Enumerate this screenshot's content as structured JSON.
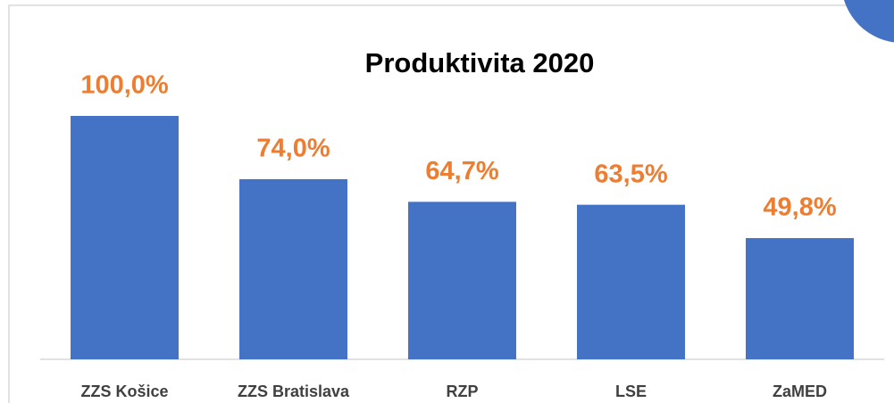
{
  "chart_data": {
    "type": "bar",
    "title": "Produktivita 2020",
    "categories": [
      "ZZS Košice",
      "ZZS Bratislava",
      "RZP",
      "LSE",
      "ZaMED"
    ],
    "values": [
      100,
      74,
      64.7,
      63.5,
      49.8
    ],
    "value_labels": [
      "100,0%",
      "74,0%",
      "64,7%",
      "63,5%",
      "49,8%"
    ],
    "color": "#4472c4",
    "label_color": "#ed7d31",
    "ylim": [
      0,
      100
    ]
  }
}
